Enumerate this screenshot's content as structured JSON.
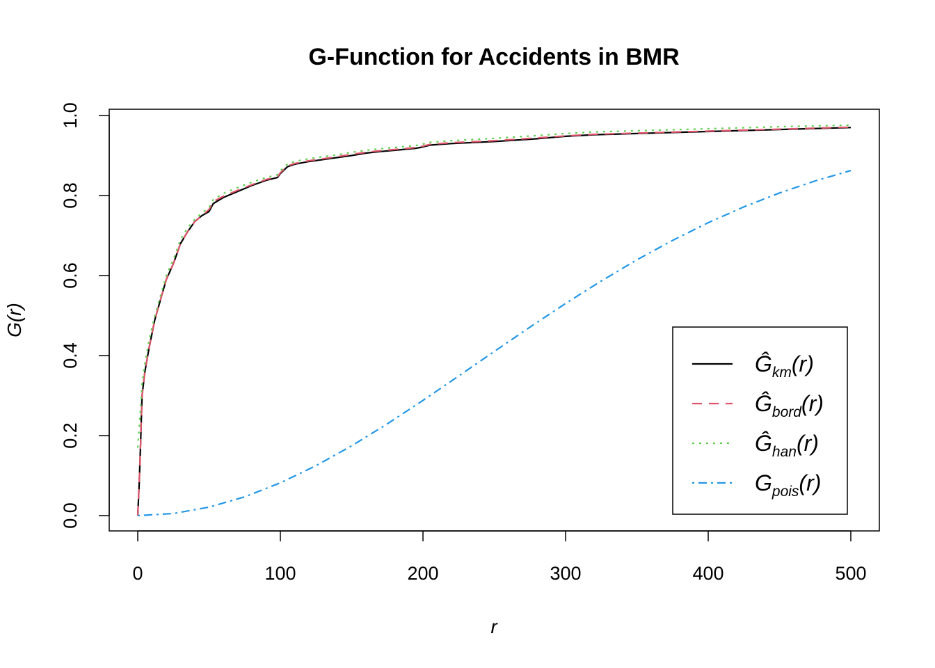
{
  "chart_data": {
    "type": "line",
    "title": "G-Function for Accidents in BMR",
    "xlabel": "r",
    "ylabel": "G(r)",
    "xlim": [
      0,
      500
    ],
    "ylim": [
      0,
      1
    ],
    "x_ticks": [
      "0",
      "100",
      "200",
      "300",
      "400",
      "500"
    ],
    "y_ticks": [
      "0.0",
      "0.2",
      "0.4",
      "0.6",
      "0.8",
      "1.0"
    ],
    "grid": false,
    "legend_position": "bottom-right",
    "series": [
      {
        "key": "km",
        "legend_main": "Ĝ",
        "legend_sub": "km",
        "legend_tail": "(r)",
        "color": "#000000",
        "dash": "none",
        "x": [
          0,
          1,
          2,
          3,
          5,
          8,
          12,
          16,
          20,
          25,
          30,
          35,
          40,
          45,
          50,
          53,
          60,
          70,
          80,
          90,
          98,
          100,
          103,
          105,
          110,
          120,
          130,
          140,
          150,
          160,
          170,
          180,
          195,
          198,
          205,
          220,
          250,
          280,
          300,
          320,
          350,
          400,
          450,
          500
        ],
        "y": [
          0.0,
          0.08,
          0.18,
          0.3,
          0.36,
          0.42,
          0.49,
          0.54,
          0.59,
          0.63,
          0.68,
          0.71,
          0.735,
          0.75,
          0.76,
          0.78,
          0.795,
          0.81,
          0.825,
          0.838,
          0.845,
          0.855,
          0.865,
          0.872,
          0.878,
          0.885,
          0.89,
          0.895,
          0.9,
          0.906,
          0.91,
          0.913,
          0.918,
          0.92,
          0.926,
          0.93,
          0.935,
          0.942,
          0.948,
          0.952,
          0.955,
          0.96,
          0.965,
          0.97
        ]
      },
      {
        "key": "bord",
        "legend_main": "Ĝ",
        "legend_sub": "bord",
        "legend_tail": "(r)",
        "color": "#DF536B",
        "dash": "14,10",
        "x": [
          0,
          1,
          2,
          3,
          5,
          8,
          12,
          16,
          20,
          25,
          30,
          35,
          40,
          45,
          50,
          53,
          60,
          70,
          80,
          90,
          98,
          100,
          103,
          105,
          110,
          120,
          130,
          140,
          150,
          160,
          170,
          180,
          195,
          198,
          205,
          220,
          250,
          280,
          300,
          320,
          350,
          400,
          450,
          500
        ],
        "y": [
          0.0,
          0.08,
          0.18,
          0.3,
          0.36,
          0.42,
          0.49,
          0.54,
          0.59,
          0.63,
          0.68,
          0.71,
          0.735,
          0.75,
          0.765,
          0.785,
          0.798,
          0.813,
          0.827,
          0.84,
          0.847,
          0.857,
          0.867,
          0.874,
          0.88,
          0.887,
          0.892,
          0.897,
          0.903,
          0.908,
          0.912,
          0.915,
          0.92,
          0.922,
          0.928,
          0.932,
          0.937,
          0.944,
          0.949,
          0.953,
          0.956,
          0.961,
          0.966,
          0.971
        ]
      },
      {
        "key": "han",
        "legend_main": "Ĝ",
        "legend_sub": "han",
        "legend_tail": "(r)",
        "color": "#61D04F",
        "dash": "3,7",
        "x": [
          0,
          1,
          2,
          3,
          5,
          8,
          12,
          16,
          20,
          25,
          30,
          35,
          40,
          45,
          50,
          53,
          60,
          70,
          80,
          90,
          98,
          100,
          103,
          105,
          110,
          120,
          130,
          140,
          150,
          160,
          170,
          180,
          195,
          198,
          205,
          220,
          250,
          280,
          300,
          320,
          350,
          400,
          450,
          500
        ],
        "y": [
          0.17,
          0.22,
          0.27,
          0.33,
          0.38,
          0.44,
          0.5,
          0.55,
          0.6,
          0.64,
          0.69,
          0.72,
          0.74,
          0.757,
          0.77,
          0.79,
          0.805,
          0.82,
          0.833,
          0.845,
          0.852,
          0.862,
          0.872,
          0.879,
          0.885,
          0.892,
          0.897,
          0.902,
          0.908,
          0.913,
          0.917,
          0.92,
          0.925,
          0.927,
          0.933,
          0.937,
          0.943,
          0.95,
          0.955,
          0.959,
          0.962,
          0.967,
          0.972,
          0.976
        ]
      },
      {
        "key": "pois",
        "legend_main": "G",
        "legend_sub": "pois",
        "legend_tail": "(r)",
        "color": "#2297E6",
        "dash": "3,6,12,6",
        "x": [
          0,
          25,
          50,
          75,
          100,
          125,
          150,
          175,
          200,
          225,
          250,
          275,
          300,
          325,
          350,
          375,
          400,
          425,
          450,
          475,
          500
        ],
        "y": [
          0.0,
          0.0053,
          0.0212,
          0.047,
          0.0819,
          0.1248,
          0.1745,
          0.2294,
          0.288,
          0.3488,
          0.4103,
          0.4711,
          0.5302,
          0.5865,
          0.6393,
          0.6879,
          0.7321,
          0.7716,
          0.8064,
          0.8366,
          0.8624
        ]
      }
    ]
  }
}
